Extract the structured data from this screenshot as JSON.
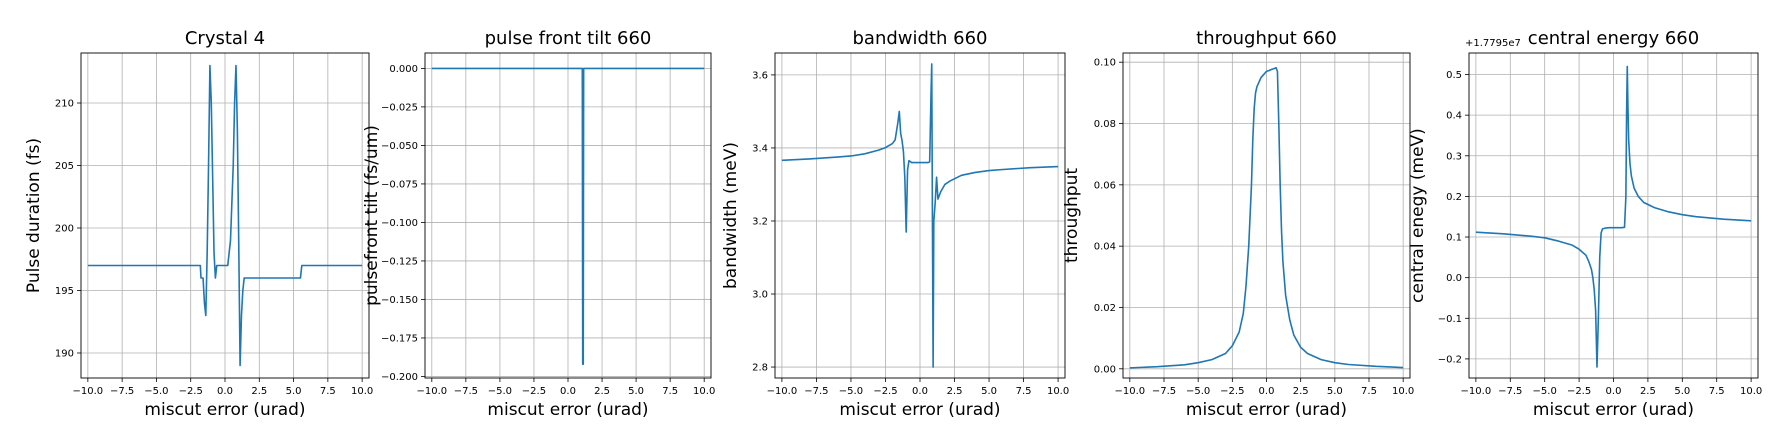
{
  "chart_data": [
    {
      "type": "line",
      "title": "Crystal 4",
      "xlabel": "miscut error (urad)",
      "ylabel": "Pulse duration (fs)",
      "xlim": [
        -10.5,
        10.5
      ],
      "ylim": [
        188,
        214
      ],
      "xticks": [
        "-10.0",
        "-7.5",
        "-5.0",
        "-2.5",
        "0.0",
        "2.5",
        "5.0",
        "7.5",
        "10.0"
      ],
      "yticks": [
        "190",
        "195",
        "200",
        "205",
        "210"
      ],
      "offset_text": "",
      "grid": true,
      "color": "#1f77b4",
      "series": [
        {
          "x": [
            -10,
            -1.8,
            -1.75,
            -1.6,
            -1.5,
            -1.4,
            -1.3,
            -1.2,
            -1.1,
            -1.0,
            -0.9,
            -0.8,
            -0.7,
            -0.6,
            -0.5,
            -0.3,
            0.0,
            0.2,
            0.4,
            0.6,
            0.7,
            0.8,
            0.9,
            1.0,
            1.1,
            1.2,
            1.3,
            1.4,
            1.6,
            1.8,
            5.5,
            5.6,
            10
          ],
          "y": [
            197,
            197,
            196,
            196,
            194,
            193,
            198,
            205,
            213,
            210,
            204,
            198,
            196,
            197,
            197,
            197,
            197,
            197,
            199,
            205,
            210,
            213,
            208,
            199,
            189,
            193,
            195,
            196,
            196,
            196,
            196,
            197,
            197
          ]
        }
      ]
    },
    {
      "type": "line",
      "title": "pulse front tilt 660",
      "xlabel": "miscut error (urad)",
      "ylabel": "pulsefront tilt (fs/um)",
      "xlim": [
        -10.5,
        10.5
      ],
      "ylim": [
        -0.201,
        0.01
      ],
      "xticks": [
        "-10.0",
        "-7.5",
        "-5.0",
        "-2.5",
        "0.0",
        "2.5",
        "5.0",
        "7.5",
        "10.0"
      ],
      "yticks": [
        "0.000",
        "-0.025",
        "-0.050",
        "-0.075",
        "-0.100",
        "-0.125",
        "-0.150",
        "-0.175",
        "-0.200"
      ],
      "offset_text": "",
      "grid": true,
      "color": "#1f77b4",
      "series": [
        {
          "x": [
            -10,
            1.05,
            1.08,
            1.12,
            1.15,
            10
          ],
          "y": [
            0,
            0,
            -0.192,
            -0.192,
            0,
            0
          ]
        }
      ]
    },
    {
      "type": "line",
      "title": "bandwidth 660",
      "xlabel": "miscut error (urad)",
      "ylabel": "bandwidth (meV)",
      "xlim": [
        -10.5,
        10.5
      ],
      "ylim": [
        2.77,
        3.66
      ],
      "xticks": [
        "-10.0",
        "-7.5",
        "-5.0",
        "-2.5",
        "0.0",
        "2.5",
        "5.0",
        "7.5",
        "10.0"
      ],
      "yticks": [
        "2.8",
        "3.0",
        "3.2",
        "3.4",
        "3.6"
      ],
      "offset_text": "",
      "grid": true,
      "color": "#1f77b4",
      "series": [
        {
          "x": [
            -10,
            -8,
            -6,
            -5,
            -4,
            -3,
            -2.5,
            -2,
            -1.8,
            -1.6,
            -1.5,
            -1.4,
            -1.3,
            -1.2,
            -1.1,
            -1.0,
            -0.9,
            -0.8,
            -0.6,
            -0.4,
            -0.2,
            0,
            0.2,
            0.4,
            0.6,
            0.7,
            0.8,
            0.85,
            0.9,
            0.95,
            1.0,
            1.1,
            1.2,
            1.3,
            1.5,
            1.8,
            2.2,
            3,
            4,
            5,
            6,
            8,
            10
          ],
          "y": [
            3.366,
            3.37,
            3.375,
            3.378,
            3.384,
            3.394,
            3.401,
            3.412,
            3.422,
            3.47,
            3.5,
            3.44,
            3.42,
            3.39,
            3.32,
            3.17,
            3.34,
            3.365,
            3.36,
            3.36,
            3.36,
            3.36,
            3.36,
            3.36,
            3.36,
            3.362,
            3.55,
            3.63,
            3.2,
            2.8,
            3.2,
            3.25,
            3.32,
            3.26,
            3.28,
            3.3,
            3.31,
            3.325,
            3.333,
            3.338,
            3.341,
            3.346,
            3.349
          ]
        }
      ]
    },
    {
      "type": "line",
      "title": "throughput 660",
      "xlabel": "miscut error (urad)",
      "ylabel": "throughput",
      "xlim": [
        -10.5,
        10.5
      ],
      "ylim": [
        -0.003,
        0.103
      ],
      "xticks": [
        "-10.0",
        "-7.5",
        "-5.0",
        "-2.5",
        "0.0",
        "2.5",
        "5.0",
        "7.5",
        "10.0"
      ],
      "yticks": [
        "0.00",
        "0.02",
        "0.04",
        "0.06",
        "0.08",
        "0.10"
      ],
      "offset_text": "",
      "grid": true,
      "color": "#1f77b4",
      "series": [
        {
          "x": [
            -10,
            -8,
            -6,
            -5,
            -4,
            -3,
            -2.5,
            -2,
            -1.7,
            -1.5,
            -1.3,
            -1.1,
            -1.0,
            -0.9,
            -0.8,
            -0.7,
            -0.6,
            -0.5,
            -0.4,
            -0.2,
            0,
            0.2,
            0.4,
            0.6,
            0.7,
            0.8,
            0.9,
            1.0,
            1.1,
            1.2,
            1.4,
            1.7,
            2.0,
            2.5,
            3,
            4,
            5,
            6,
            8,
            10
          ],
          "y": [
            0.0003,
            0.0007,
            0.0013,
            0.002,
            0.003,
            0.005,
            0.0075,
            0.012,
            0.018,
            0.027,
            0.04,
            0.06,
            0.075,
            0.085,
            0.09,
            0.092,
            0.093,
            0.094,
            0.095,
            0.096,
            0.097,
            0.0973,
            0.0977,
            0.098,
            0.0982,
            0.097,
            0.08,
            0.06,
            0.045,
            0.035,
            0.024,
            0.016,
            0.011,
            0.007,
            0.005,
            0.003,
            0.002,
            0.0014,
            0.0008,
            0.0004
          ]
        }
      ]
    },
    {
      "type": "line",
      "title": "central energy 660",
      "xlabel": "miscut error (urad)",
      "ylabel": "central enegy (meV)",
      "xlim": [
        -10.5,
        10.5
      ],
      "ylim": [
        -0.247,
        0.553
      ],
      "xticks": [
        "-10.0",
        "-7.5",
        "-5.0",
        "-2.5",
        "0.0",
        "2.5",
        "5.0",
        "7.5",
        "10.0"
      ],
      "yticks": [
        "-0.2",
        "-0.1",
        "0.0",
        "0.1",
        "0.2",
        "0.3",
        "0.4",
        "0.5"
      ],
      "offset_text": "+1.7795e7",
      "grid": true,
      "color": "#1f77b4",
      "series": [
        {
          "x": [
            -10,
            -8,
            -6,
            -5,
            -4,
            -3,
            -2.5,
            -2,
            -1.8,
            -1.6,
            -1.5,
            -1.4,
            -1.3,
            -1.2,
            -1.1,
            -1.0,
            -0.9,
            -0.8,
            -0.6,
            -0.3,
            0,
            0.3,
            0.6,
            0.8,
            0.9,
            0.95,
            1.0,
            1.05,
            1.1,
            1.2,
            1.3,
            1.5,
            1.8,
            2.2,
            3,
            4,
            5,
            6,
            8,
            10
          ],
          "y": [
            0.112,
            0.108,
            0.102,
            0.098,
            0.09,
            0.08,
            0.07,
            0.055,
            0.04,
            0.02,
            0.0,
            -0.03,
            -0.08,
            -0.22,
            -0.1,
            0.05,
            0.11,
            0.12,
            0.122,
            0.123,
            0.123,
            0.123,
            0.123,
            0.124,
            0.2,
            0.4,
            0.52,
            0.42,
            0.34,
            0.28,
            0.25,
            0.22,
            0.2,
            0.185,
            0.172,
            0.162,
            0.155,
            0.15,
            0.144,
            0.14
          ]
        }
      ]
    }
  ]
}
